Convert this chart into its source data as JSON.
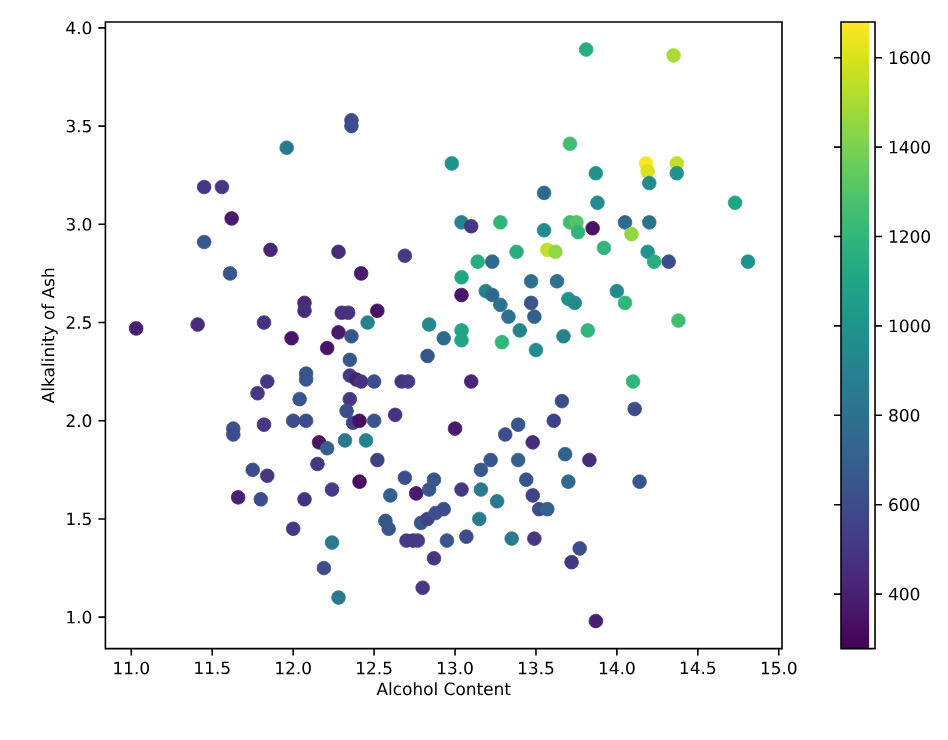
{
  "chart_data": {
    "type": "scatter",
    "xlabel": "Alcohol Content",
    "ylabel": "Alkalinity of Ash",
    "xlim": [
      10.84,
      15.02
    ],
    "ylim": [
      0.84,
      4.03
    ],
    "xticks": [
      {
        "value": 11,
        "label": "11.0"
      },
      {
        "value": 11.5,
        "label": "11.5"
      },
      {
        "value": 12,
        "label": "12.0"
      },
      {
        "value": 12.5,
        "label": "12.5"
      },
      {
        "value": 13,
        "label": "13.0"
      },
      {
        "value": 13.5,
        "label": "13.5"
      },
      {
        "value": 14,
        "label": "14.0"
      },
      {
        "value": 14.5,
        "label": "14.5"
      },
      {
        "value": 15,
        "label": "15.0"
      }
    ],
    "yticks": [
      {
        "value": 1,
        "label": "1.0"
      },
      {
        "value": 1.5,
        "label": "1.5"
      },
      {
        "value": 2,
        "label": "2.0"
      },
      {
        "value": 2.5,
        "label": "2.5"
      },
      {
        "value": 3,
        "label": "3.0"
      },
      {
        "value": 3.5,
        "label": "3.5"
      },
      {
        "value": 4,
        "label": "4.0"
      }
    ],
    "clim": [
      278,
      1680
    ],
    "cticks": [
      400,
      600,
      800,
      1000,
      1200,
      1400,
      1600
    ],
    "marker": "circle",
    "grid": false,
    "x": [
      11.03,
      11.41,
      11.45,
      11.56,
      11.62,
      11.45,
      11.61,
      11.96,
      11.86,
      11.82,
      11.99,
      12.07,
      12.07,
      12.21,
      12.28,
      12.36,
      12.36,
      12.28,
      12.3,
      12.34,
      12.42,
      12.52,
      12.46,
      12.36,
      12.69,
      12.84,
      12.93,
      12.83,
      12.98,
      13.04,
      13.1,
      13.14,
      13.04,
      13.04,
      13.04,
      13.04,
      13.81,
      14.35,
      13.71,
      14.18,
      14.37,
      14.19,
      13.87,
      14.2,
      14.37,
      13.55,
      13.88,
      14.73,
      13.28,
      13.71,
      13.75,
      13.85,
      13.76,
      14.05,
      14.2,
      13.55,
      14.09,
      13.92,
      13.38,
      13.57,
      13.62,
      13.23,
      14.19,
      14.23,
      14.32,
      14.81,
      13.47,
      13.63,
      13.19,
      13.23,
      13.28,
      13.47,
      13.7,
      13.74,
      14.0,
      14.05,
      13.33,
      13.49,
      14.38,
      13.29,
      13.4,
      13.67,
      13.82,
      13.5,
      12.35,
      12.08,
      12.08,
      11.78,
      11.84,
      12.35,
      12.39,
      12.42,
      12.5,
      12.67,
      12.71,
      13.1,
      12.35,
      12.04,
      12.33,
      12.37,
      12.41,
      12.5,
      12.63,
      11.63,
      11.63,
      11.82,
      12.0,
      12.08,
      13.0,
      12.16,
      12.21,
      12.32,
      12.45,
      12.15,
      11.75,
      11.84,
      12.52,
      12.41,
      12.24,
      11.66,
      11.8,
      12.07,
      12.6,
      12.69,
      12.76,
      12.84,
      12.87,
      13.04,
      12.57,
      12.59,
      12.7,
      12.74,
      12.77,
      12.79,
      12.83,
      12.88,
      12.93,
      12.95,
      12.87,
      13.07,
      12.0,
      12.24,
      12.19,
      12.28,
      12.8,
      14.1,
      13.66,
      14.11,
      13.39,
      13.31,
      13.61,
      13.48,
      13.22,
      13.16,
      13.39,
      13.68,
      13.83,
      13.44,
      13.7,
      14.14,
      13.16,
      13.48,
      13.52,
      13.57,
      13.26,
      13.15,
      13.35,
      13.49,
      13.77,
      13.72,
      13.87
    ],
    "values": [
      2.47,
      2.49,
      3.19,
      3.19,
      3.03,
      2.91,
      2.75,
      3.39,
      2.87,
      2.5,
      2.42,
      2.6,
      2.56,
      2.37,
      2.86,
      3.53,
      3.5,
      2.45,
      2.55,
      2.55,
      2.75,
      2.56,
      2.5,
      2.43,
      2.84,
      2.49,
      2.42,
      2.33,
      3.31,
      3.01,
      2.99,
      2.81,
      2.73,
      2.64,
      2.46,
      2.41,
      3.89,
      3.86,
      3.41,
      3.31,
      3.31,
      3.27,
      3.26,
      3.21,
      3.26,
      3.16,
      3.11,
      3.11,
      3.01,
      3.01,
      3.01,
      2.98,
      2.96,
      3.01,
      3.01,
      2.97,
      2.95,
      2.88,
      2.86,
      2.87,
      2.86,
      2.81,
      2.86,
      2.81,
      2.81,
      2.81,
      2.71,
      2.71,
      2.66,
      2.64,
      2.59,
      2.6,
      2.62,
      2.6,
      2.66,
      2.6,
      2.53,
      2.53,
      2.51,
      2.4,
      2.46,
      2.43,
      2.46,
      2.36,
      2.31,
      2.24,
      2.21,
      2.14,
      2.2,
      2.23,
      2.21,
      2.2,
      2.2,
      2.2,
      2.2,
      2.2,
      2.11,
      2.11,
      2.05,
      1.99,
      2.0,
      2.0,
      2.03,
      1.96,
      1.93,
      1.98,
      2.0,
      2.0,
      1.96,
      1.89,
      1.86,
      1.9,
      1.9,
      1.78,
      1.75,
      1.72,
      1.8,
      1.69,
      1.65,
      1.61,
      1.6,
      1.6,
      1.62,
      1.71,
      1.63,
      1.65,
      1.7,
      1.65,
      1.49,
      1.45,
      1.39,
      1.39,
      1.39,
      1.48,
      1.5,
      1.53,
      1.55,
      1.39,
      1.3,
      1.41,
      1.45,
      1.38,
      1.25,
      1.1,
      1.15,
      2.2,
      2.1,
      2.06,
      1.98,
      1.93,
      2.0,
      1.89,
      1.8,
      1.75,
      1.8,
      1.83,
      1.8,
      1.7,
      1.69,
      1.69,
      1.65,
      1.62,
      1.55,
      1.55,
      1.59,
      1.5,
      1.4,
      1.4,
      1.35,
      1.28,
      0.98
    ],
    "cvalues": [
      400,
      450,
      500,
      500,
      380,
      650,
      650,
      850,
      420,
      480,
      350,
      450,
      450,
      350,
      450,
      600,
      600,
      380,
      480,
      480,
      380,
      330,
      900,
      650,
      520,
      950,
      750,
      650,
      1000,
      900,
      500,
      1150,
      1100,
      350,
      1100,
      1100,
      1150,
      1500,
      1250,
      1680,
      1550,
      1600,
      1000,
      950,
      1000,
      750,
      950,
      1100,
      1200,
      1250,
      1300,
      350,
      1200,
      750,
      800,
      950,
      1450,
      1200,
      1150,
      1550,
      1450,
      750,
      1000,
      1150,
      600,
      1000,
      800,
      800,
      900,
      750,
      800,
      650,
      1000,
      950,
      950,
      1200,
      800,
      700,
      1250,
      1200,
      900,
      900,
      1200,
      950,
      650,
      650,
      650,
      500,
      500,
      520,
      400,
      480,
      600,
      500,
      520,
      420,
      500,
      650,
      600,
      550,
      330,
      650,
      480,
      650,
      600,
      500,
      600,
      600,
      380,
      350,
      700,
      850,
      900,
      500,
      600,
      500,
      550,
      330,
      520,
      400,
      600,
      480,
      700,
      600,
      380,
      650,
      650,
      500,
      650,
      650,
      520,
      500,
      520,
      650,
      550,
      600,
      600,
      650,
      500,
      600,
      500,
      850,
      600,
      850,
      500,
      1200,
      600,
      600,
      650,
      600,
      550,
      450,
      650,
      650,
      700,
      700,
      450,
      650,
      750,
      650,
      850,
      550,
      600,
      700,
      850,
      850,
      850,
      500,
      600,
      500,
      400
    ]
  }
}
